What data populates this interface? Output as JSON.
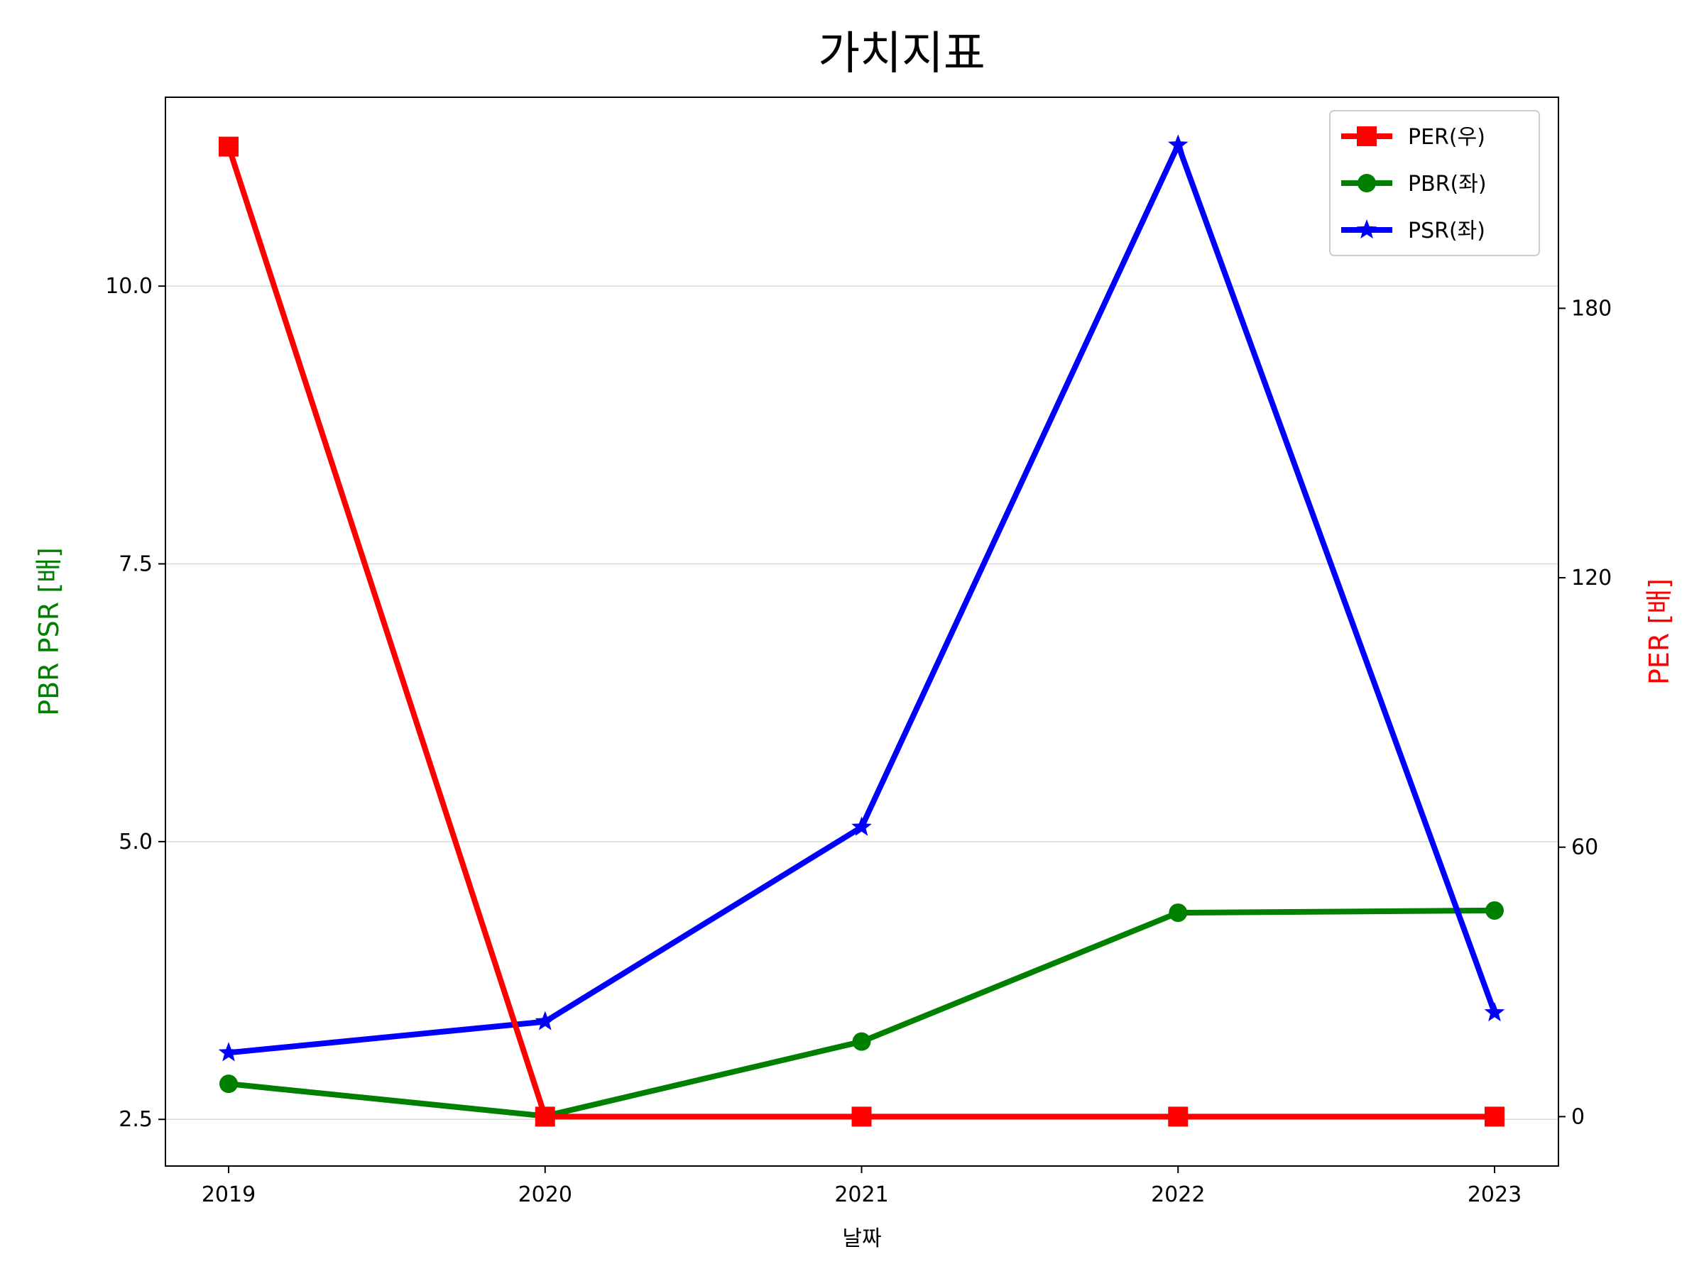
{
  "chart_data": {
    "type": "line",
    "title": "가치지표",
    "xlabel": "날짜",
    "ylabel_left": "PBR PSR [배]",
    "ylabel_right": "PER [배]",
    "ylabel_left_color": "#008000",
    "ylabel_right_color": "#ff0000",
    "categories": [
      "2019",
      "2020",
      "2021",
      "2022",
      "2023"
    ],
    "y_left": {
      "min": 2.08,
      "max": 11.7,
      "ticks": [
        2.5,
        5.0,
        7.5,
        10.0
      ],
      "tick_labels": [
        "2.5",
        "5.0",
        "7.5",
        "10.0"
      ]
    },
    "y_right": {
      "min": -11,
      "max": 227,
      "ticks": [
        0,
        60,
        120,
        180
      ],
      "tick_labels": [
        "0",
        "60",
        "120",
        "180"
      ]
    },
    "grid": "horizontal (left axis)",
    "legend_position": "top-right",
    "series": [
      {
        "name": "PER(우)",
        "axis": "right",
        "color": "#ff0000",
        "marker": "square",
        "values": [
          216,
          0,
          0,
          0,
          0
        ]
      },
      {
        "name": "PBR(좌)",
        "axis": "left",
        "color": "#008000",
        "marker": "circle",
        "values": [
          2.82,
          2.53,
          3.2,
          4.36,
          4.38
        ]
      },
      {
        "name": "PSR(좌)",
        "axis": "left",
        "color": "#0000ff",
        "marker": "star",
        "values": [
          3.1,
          3.38,
          5.13,
          11.27,
          3.46
        ]
      }
    ]
  }
}
